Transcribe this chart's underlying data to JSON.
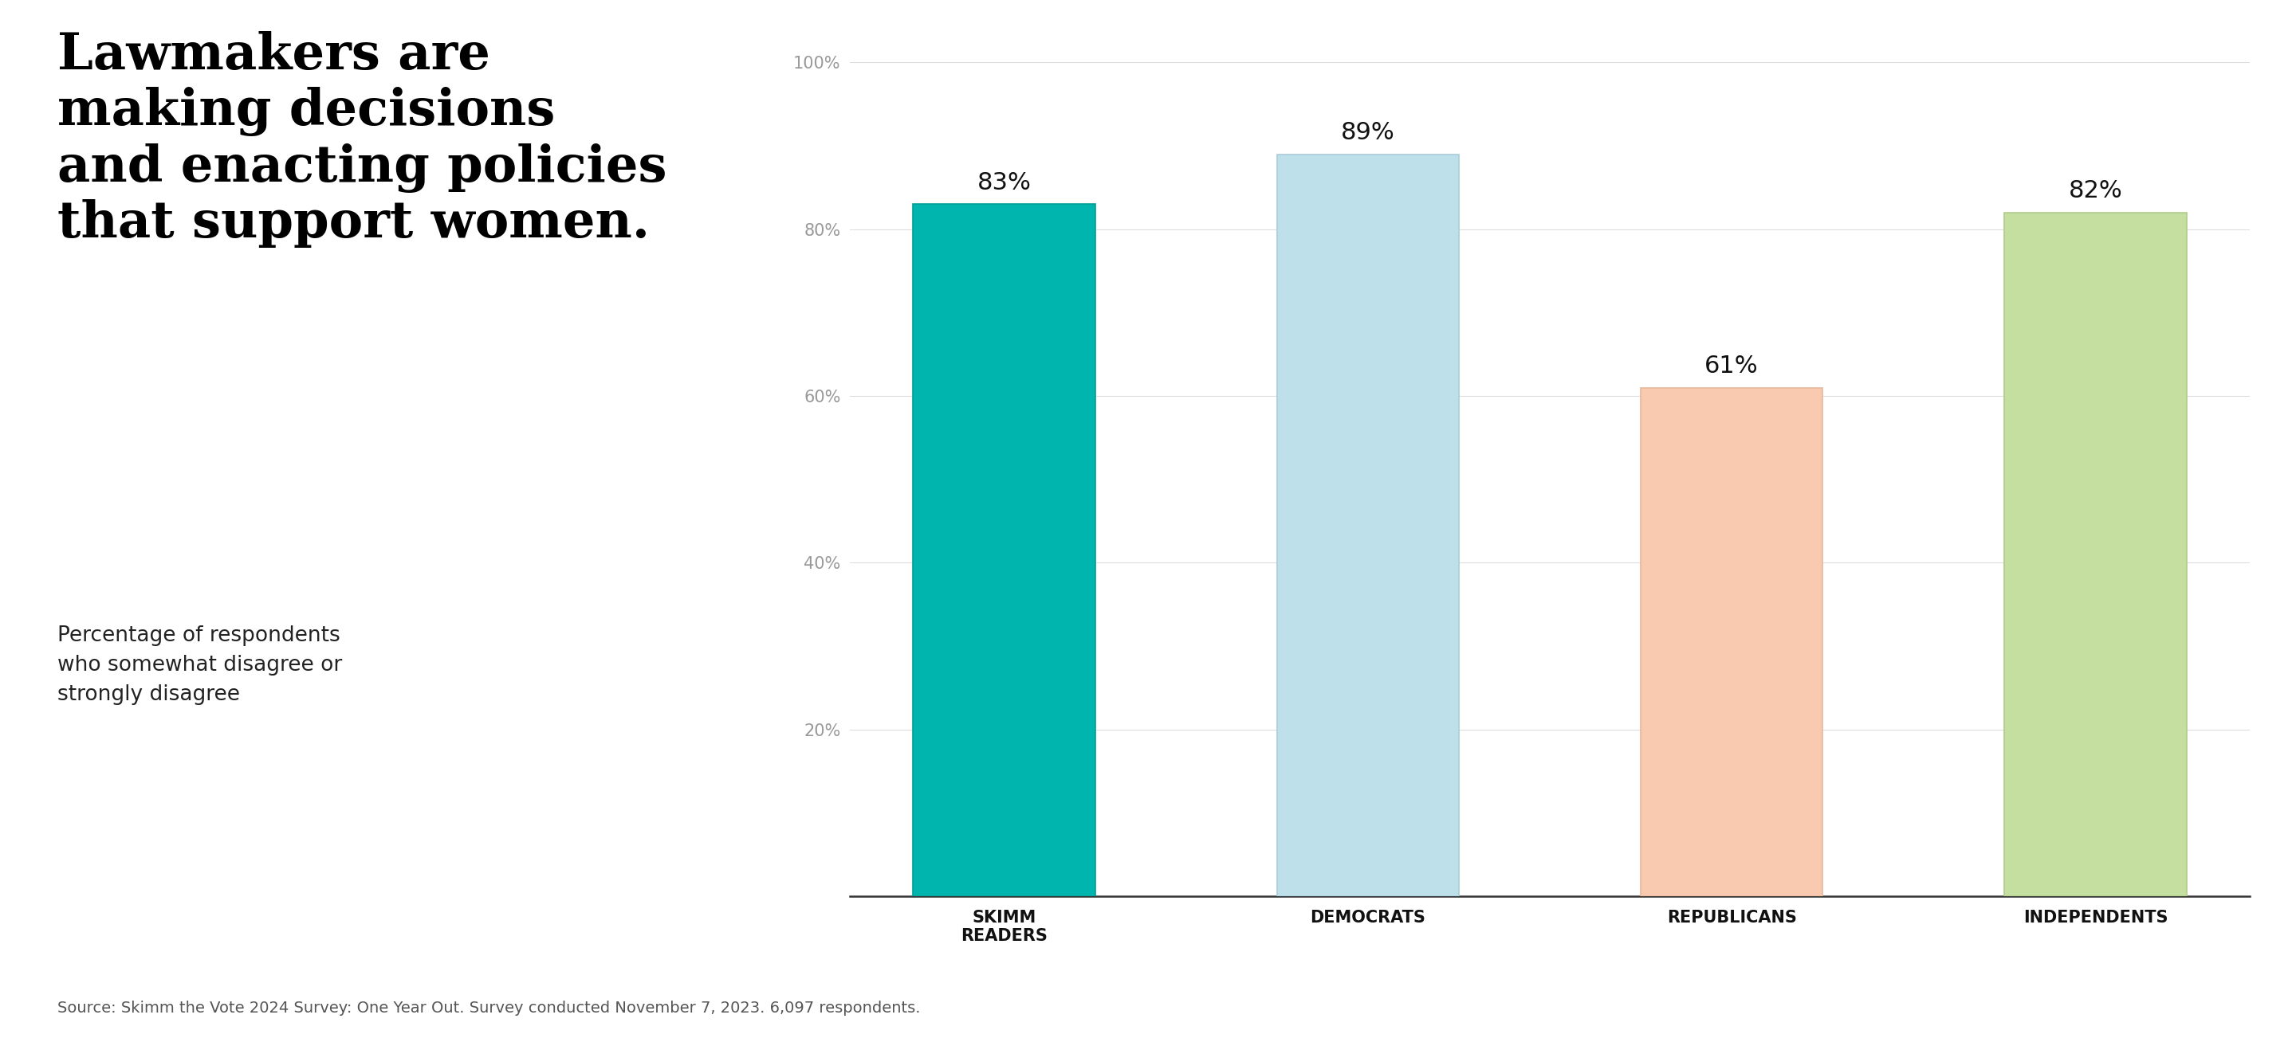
{
  "title_lines": [
    "Lawmakers are",
    "making decisions",
    "and enacting policies",
    "that support women."
  ],
  "subtitle_lines": [
    "Percentage of respondents",
    "who somewhat disagree or",
    "strongly disagree"
  ],
  "source_text": "Source: Skimm the Vote 2024 Survey: One Year Out. Survey conducted November 7, 2023. 6,097 respondents.",
  "categories": [
    "SKIMM\nREADERS",
    "DEMOCRATS",
    "REPUBLICANS",
    "INDEPENDENTS"
  ],
  "values": [
    83,
    89,
    61,
    82
  ],
  "bar_colors": [
    "#00B5AD",
    "#BEE0EA",
    "#F9CAB0",
    "#C5DFA0"
  ],
  "bar_edge_colors": [
    "#009E97",
    "#A8CDD8",
    "#E8B89A",
    "#B0CC8C"
  ],
  "ylim": [
    0,
    100
  ],
  "yticks": [
    20,
    40,
    60,
    80,
    100
  ],
  "ytick_labels": [
    "20%",
    "40%",
    "60%",
    "80%",
    "100%"
  ],
  "background_color": "#FFFFFF",
  "title_fontsize": 46,
  "subtitle_fontsize": 19,
  "bar_label_fontsize": 22,
  "tick_label_fontsize": 15,
  "source_fontsize": 14,
  "grid_color": "#DDDDDD"
}
